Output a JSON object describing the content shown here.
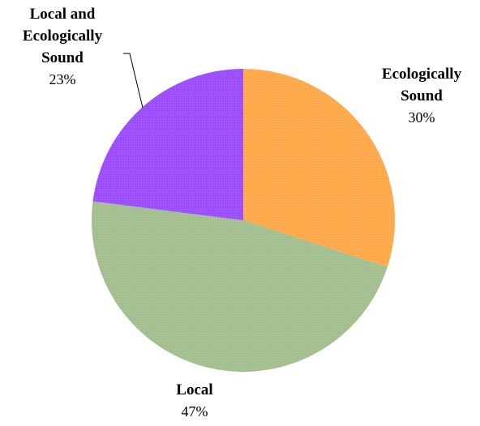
{
  "chart_data": {
    "type": "pie",
    "start_angle_deg": 0,
    "direction": "clockwise",
    "slices": [
      {
        "name": "Ecologically\nSound",
        "value": 30,
        "pct_label": "30%",
        "color": "#FFA94A"
      },
      {
        "name": "Local",
        "value": 47,
        "pct_label": "47%",
        "color": "#A3BE8F"
      },
      {
        "name": "Local and\nEcologically\nSound",
        "value": 23,
        "pct_label": "23%",
        "color": "#9B4DFF"
      }
    ],
    "legend": "none"
  }
}
